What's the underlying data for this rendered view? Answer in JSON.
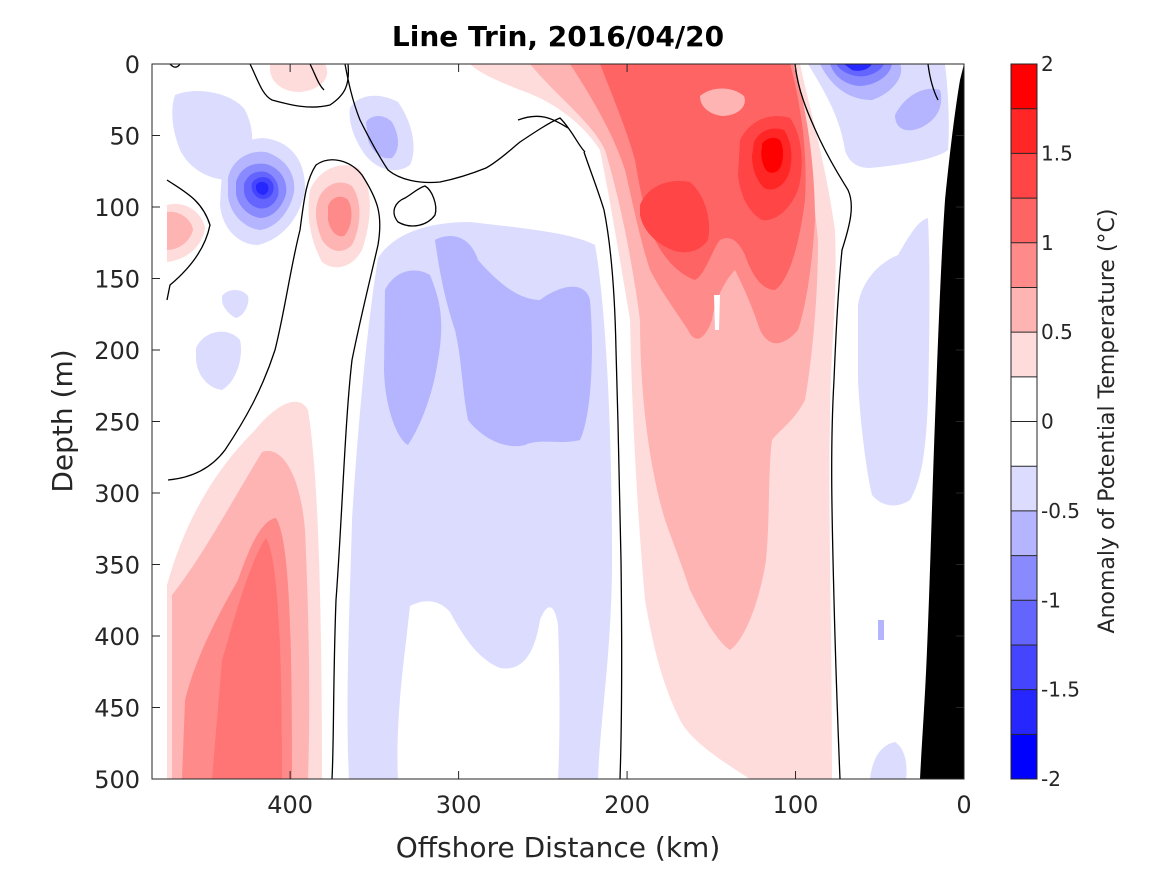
{
  "chart_data": {
    "type": "heatmap",
    "title": "Line Trin, 2016/04/20",
    "xlabel": "Offshore Distance (km)",
    "ylabel": "Depth (m)",
    "colorbar_label": "Anomaly of Potential Temperature (°C)",
    "xlim": [
      482,
      0
    ],
    "ylim": [
      0,
      500
    ],
    "x_reversed": true,
    "y_reversed": true,
    "xticks": [
      400,
      300,
      200,
      100,
      0
    ],
    "yticks": [
      0,
      50,
      100,
      150,
      200,
      250,
      300,
      350,
      400,
      450,
      500
    ],
    "clim": [
      -2,
      2
    ],
    "colorbar_ticks": [
      2,
      1.5,
      1,
      0.5,
      0,
      -0.5,
      -1,
      -1.5,
      -2
    ],
    "colorbar_levels": [
      {
        "range": [
          1.75,
          2.0
        ],
        "color": "#ff0000"
      },
      {
        "range": [
          1.5,
          1.75
        ],
        "color": "#ff2626"
      },
      {
        "range": [
          1.25,
          1.5
        ],
        "color": "#ff4545"
      },
      {
        "range": [
          1.0,
          1.25
        ],
        "color": "#ff6464"
      },
      {
        "range": [
          0.75,
          1.0
        ],
        "color": "#ff8a8a"
      },
      {
        "range": [
          0.5,
          0.75
        ],
        "color": "#ffb4b4"
      },
      {
        "range": [
          0.25,
          0.5
        ],
        "color": "#ffdcdc"
      },
      {
        "range": [
          0.0,
          0.25
        ],
        "color": "#ffffff"
      },
      {
        "range": [
          -0.25,
          0.0
        ],
        "color": "#ffffff"
      },
      {
        "range": [
          -0.5,
          -0.25
        ],
        "color": "#dcdcff"
      },
      {
        "range": [
          -0.75,
          -0.5
        ],
        "color": "#b4b4ff"
      },
      {
        "range": [
          -1.0,
          -0.75
        ],
        "color": "#8a8aff"
      },
      {
        "range": [
          -1.25,
          -1.0
        ],
        "color": "#6464ff"
      },
      {
        "range": [
          -1.5,
          -1.25
        ],
        "color": "#4545ff"
      },
      {
        "range": [
          -1.75,
          -1.5
        ],
        "color": "#2626ff"
      },
      {
        "range": [
          -2.0,
          -1.75
        ],
        "color": "#0000ff"
      }
    ],
    "colors": {
      "land": "#000000",
      "zero_contour": "#000000",
      "background": "#ffffff"
    },
    "features": [
      {
        "name": "warm-core-coastal",
        "x_center": 150,
        "z_center": 80,
        "peak": 1.6,
        "extent": "0-350 m"
      },
      {
        "name": "warm-core-offshore",
        "x_center": 420,
        "z_center": 420,
        "peak": 1.0
      },
      {
        "name": "cold-band-central",
        "x_center": 280,
        "z_center": 300,
        "peak": -0.6
      },
      {
        "name": "cold-eddy-offshore",
        "x_center": 425,
        "z_center": 85,
        "peak": -1.5
      },
      {
        "name": "cold-eddy-nearshore",
        "x_center": 68,
        "z_center": 5,
        "peak": -1.5
      }
    ]
  }
}
